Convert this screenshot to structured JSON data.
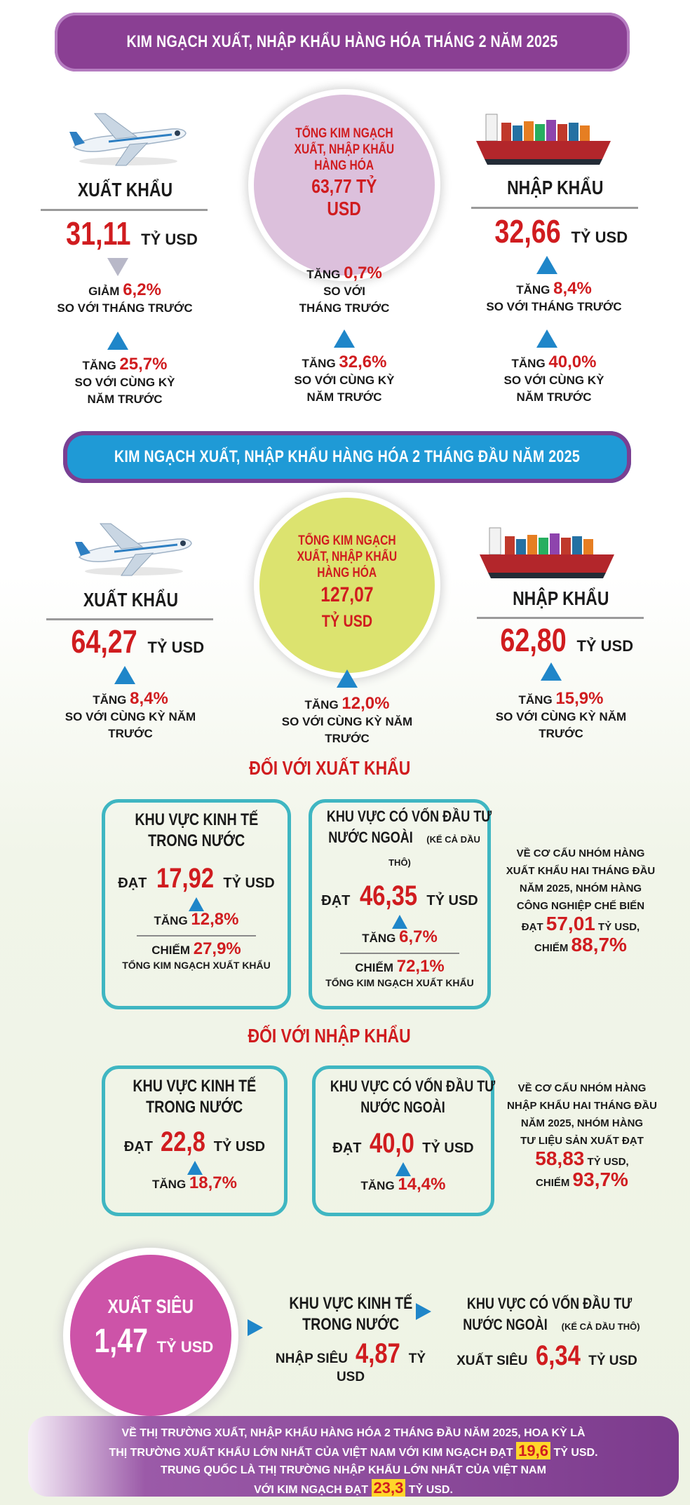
{
  "section1": {
    "banner": "KIM NGẠCH XUẤT, NHẬP KHẨU HÀNG HÓA THÁNG 2 NĂM 2025",
    "export": {
      "label": "XUẤT KHẨU",
      "value": "31,11",
      "unit": "TỶ USD",
      "c1_dir": "GIẢM",
      "c1_pct": "6,2%",
      "c1_desc": "SO VỚI THÁNG TRƯỚC",
      "c2_dir": "TĂNG",
      "c2_pct": "25,7%",
      "c2_desc1": "SO VỚI CÙNG KỲ",
      "c2_desc2": "NĂM TRƯỚC"
    },
    "total": {
      "line1": "TỔNG KIM NGẠCH",
      "line2": "XUẤT, NHẬP KHẨU",
      "line3": "HÀNG HÓA",
      "value": "63,77 TỶ",
      "unit": "USD",
      "c1_dir": "TĂNG",
      "c1_pct": "0,7%",
      "c1_desc1": "SO VỚI",
      "c1_desc2": "THÁNG TRƯỚC",
      "c2_dir": "TĂNG",
      "c2_pct": "32,6%",
      "c2_desc1": "SO VỚI CÙNG KỲ",
      "c2_desc2": "NĂM TRƯỚC"
    },
    "import": {
      "label": "NHẬP KHẨU",
      "value": "32,66",
      "unit": "TỶ USD",
      "c1_dir": "TĂNG",
      "c1_pct": "8,4%",
      "c1_desc": "SO VỚI THÁNG TRƯỚC",
      "c2_dir": "TĂNG",
      "c2_pct": "40,0%",
      "c2_desc1": "SO VỚI CÙNG KỲ",
      "c2_desc2": "NĂM TRƯỚC"
    }
  },
  "section2": {
    "banner": "KIM NGẠCH XUẤT, NHẬP KHẨU HÀNG HÓA 2 THÁNG ĐẦU NĂM 2025",
    "export": {
      "label": "XUẤT KHẨU",
      "value": "64,27",
      "unit": "TỶ USD",
      "dir": "TĂNG",
      "pct": "8,4%",
      "desc": "SO VỚI CÙNG KỲ NĂM TRƯỚC"
    },
    "total": {
      "line1": "TỔNG KIM NGẠCH",
      "line2": "XUẤT, NHẬP KHẨU",
      "line3": "HÀNG HÓA",
      "value": "127,07",
      "unit": "TỶ USD",
      "dir": "TĂNG",
      "pct": "12,0%",
      "desc": "SO VỚI CÙNG KỲ NĂM TRƯỚC"
    },
    "import": {
      "label": "NHẬP KHẨU",
      "value": "62,80",
      "unit": "TỶ USD",
      "dir": "TĂNG",
      "pct": "15,9%",
      "desc": "SO VỚI CÙNG KỲ NĂM TRƯỚC"
    }
  },
  "exports": {
    "title": "ĐỐI VỚI XUẤT KHẨU",
    "domestic": {
      "t1": "KHU VỰC KINH TẾ",
      "t2": "TRONG NƯỚC",
      "reach": "ĐẠT",
      "value": "17,92",
      "unit": "TỶ USD",
      "dir": "TĂNG",
      "pct": "12,8%",
      "share_lbl": "CHIẾM",
      "share": "27,9%",
      "share_desc": "TỔNG KIM NGẠCH XUẤT KHẨU"
    },
    "fdi": {
      "t1": "KHU VỰC CÓ VỐN ĐẦU TƯ",
      "t2": "NƯỚC NGOÀI",
      "t2_note": "(KỂ CẢ DẦU THÔ)",
      "reach": "ĐẠT",
      "value": "46,35",
      "unit": "TỶ USD",
      "dir": "TĂNG",
      "pct": "6,7%",
      "share_lbl": "CHIẾM",
      "share": "72,1%",
      "share_desc": "TỔNG KIM NGẠCH XUẤT KHẨU"
    },
    "note": {
      "l1": "VỀ CƠ CẤU NHÓM HÀNG",
      "l2": "XUẤT KHẨU HAI THÁNG ĐẦU",
      "l3": "NĂM 2025, NHÓM HÀNG",
      "l4": "CÔNG NGHIỆP CHẾ BIẾN",
      "reach": "ĐẠT",
      "value": "57,01",
      "unit": "TỶ USD,",
      "share_lbl": "CHIẾM",
      "share": "88,7%"
    }
  },
  "imports": {
    "title": "ĐỐI VỚI NHẬP KHẨU",
    "domestic": {
      "t1": "KHU VỰC KINH TẾ",
      "t2": "TRONG NƯỚC",
      "reach": "ĐẠT",
      "value": "22,8",
      "unit": "TỶ USD",
      "dir": "TĂNG",
      "pct": "18,7%"
    },
    "fdi": {
      "t1": "KHU VỰC CÓ VỐN ĐẦU TƯ",
      "t2": "NƯỚC NGOÀI",
      "reach": "ĐẠT",
      "value": "40,0",
      "unit": "TỶ USD",
      "dir": "TĂNG",
      "pct": "14,4%"
    },
    "note": {
      "l1": "VỀ CƠ CẤU NHÓM HÀNG",
      "l2": "NHẬP KHẨU HAI THÁNG ĐẦU",
      "l3": "NĂM 2025, NHÓM HÀNG",
      "l4": "TƯ LIỆU SẢN XUẤT ĐẠT",
      "value": "58,83",
      "unit": "TỶ USD,",
      "share_lbl": "CHIẾM",
      "share": "93,7%"
    }
  },
  "surplus": {
    "title": "XUẤT SIÊU",
    "value": "1,47",
    "unit": "TỶ USD",
    "domestic": {
      "t1": "KHU VỰC KINH TẾ",
      "t2": "TRONG NƯỚC",
      "lbl": "NHẬP SIÊU",
      "value": "4,87",
      "unit": "TỶ USD"
    },
    "fdi": {
      "t1": "KHU VỰC CÓ VỐN ĐẦU TƯ",
      "t2": "NƯỚC NGOÀI",
      "t2_note": "(KỂ CẢ DẦU THÔ)",
      "lbl": "XUẤT SIÊU",
      "value": "6,34",
      "unit": "TỶ USD"
    }
  },
  "footer": {
    "l1": "VỀ THỊ TRƯỜNG XUẤT, NHẬP KHẨU HÀNG HÓA 2 THÁNG ĐẦU NĂM 2025, HOA KỲ LÀ",
    "l2a": "THỊ TRƯỜNG XUẤT KHẨU LỚN NHẤT CỦA VIỆT NAM VỚI KIM NGẠCH ĐẠT",
    "l2v": "19,6",
    "l2b": "TỶ USD.",
    "l3": "TRUNG QUỐC LÀ THỊ TRƯỜNG NHẬP KHẨU LỚN NHẤT CỦA VIỆT NAM",
    "l4a": "VỚI KIM NGẠCH ĐẠT",
    "l4v": "23,3",
    "l4b": "TỶ USD."
  },
  "colors": {
    "purple": "#8a3f93",
    "blue": "#1f9ad6",
    "red": "#d01c1f",
    "teal": "#3fb6c2",
    "arrow": "#1f86c9"
  },
  "icons": [
    "airplane-icon",
    "cargo-ship-icon",
    "triangle-up-icon",
    "triangle-down-icon",
    "arrow-right-icon"
  ]
}
